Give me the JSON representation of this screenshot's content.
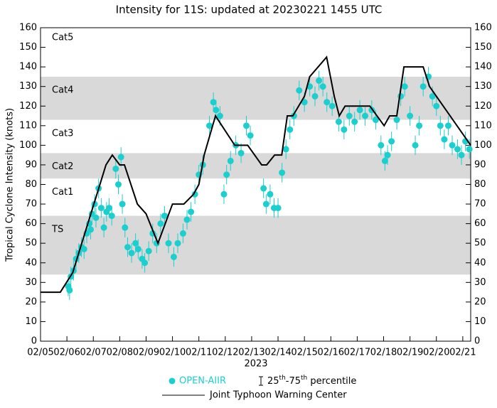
{
  "chart_data": {
    "type": "scatter",
    "title": "Intensity for 11S: updated at 20230221 1455 UTC",
    "ylabel": "Tropical Cyclone Intensity (knots)",
    "xlabel": "2023",
    "xlim": [
      5,
      21.3
    ],
    "xticks": [
      {
        "value": 5,
        "label": "02/05"
      },
      {
        "value": 6,
        "label": "02/06"
      },
      {
        "value": 7,
        "label": "02/07"
      },
      {
        "value": 8,
        "label": "02/08"
      },
      {
        "value": 9,
        "label": "02/09"
      },
      {
        "value": 10,
        "label": "02/10"
      },
      {
        "value": 11,
        "label": "02/11"
      },
      {
        "value": 12,
        "label": "02/12"
      },
      {
        "value": 13,
        "label": "02/13"
      },
      {
        "value": 14,
        "label": "02/14"
      },
      {
        "value": 15,
        "label": "02/15"
      },
      {
        "value": 16,
        "label": "02/16"
      },
      {
        "value": 17,
        "label": "02/17"
      },
      {
        "value": 18,
        "label": "02/18"
      },
      {
        "value": 19,
        "label": "02/19"
      },
      {
        "value": 20,
        "label": "02/20"
      },
      {
        "value": 21,
        "label": "02/21"
      }
    ],
    "ylim": [
      0,
      160
    ],
    "yticks": [
      0,
      10,
      20,
      30,
      40,
      50,
      60,
      70,
      80,
      90,
      100,
      110,
      120,
      130,
      140,
      150,
      160
    ],
    "y2lim": [
      0,
      160
    ],
    "y2ticks": [
      0,
      10,
      20,
      30,
      40,
      50,
      60,
      70,
      80,
      90,
      100,
      110,
      120,
      130,
      140,
      150,
      160
    ],
    "bands": [
      {
        "label": "TS",
        "range": [
          34,
          64
        ],
        "shaded": true
      },
      {
        "label": "Cat1",
        "range": [
          64,
          83
        ],
        "shaded": false
      },
      {
        "label": "Cat2",
        "range": [
          83,
          96
        ],
        "shaded": true
      },
      {
        "label": "Cat3",
        "range": [
          96,
          113
        ],
        "shaded": false
      },
      {
        "label": "Cat4",
        "range": [
          113,
          135
        ],
        "shaded": true
      },
      {
        "label": "Cat5",
        "range": [
          135,
          160
        ],
        "shaded": false
      }
    ],
    "band_color": "#d9d9d9",
    "series": [
      {
        "name": "OPEN-AIIR",
        "kind": "scatter",
        "color": "#1ccfcf",
        "error": 5,
        "x": [
          6.05,
          6.1,
          6.15,
          6.25,
          6.35,
          6.45,
          6.55,
          6.65,
          6.75,
          6.85,
          6.9,
          6.95,
          7.05,
          7.1,
          7.2,
          7.3,
          7.4,
          7.5,
          7.6,
          7.7,
          7.85,
          7.95,
          8.05,
          8.1,
          8.2,
          8.3,
          8.45,
          8.6,
          8.7,
          8.85,
          8.95,
          9.1,
          9.25,
          9.4,
          9.55,
          9.7,
          9.85,
          10.05,
          10.2,
          10.4,
          10.55,
          10.7,
          10.85,
          11.0,
          11.15,
          11.4,
          11.55,
          11.65,
          11.8,
          11.95,
          12.05,
          12.2,
          12.4,
          12.6,
          12.8,
          12.95,
          13.45,
          13.55,
          13.7,
          13.85,
          14.0,
          14.15,
          14.3,
          14.45,
          14.6,
          14.8,
          15.0,
          15.2,
          15.4,
          15.55,
          15.7,
          15.85,
          16.05,
          16.3,
          16.5,
          16.7,
          16.9,
          17.1,
          17.3,
          17.55,
          17.7,
          17.9,
          18.05,
          18.15,
          18.3,
          18.5,
          18.65,
          18.8,
          19.0,
          19.2,
          19.35,
          19.5,
          19.7,
          19.85,
          20.0,
          20.15,
          20.3,
          20.45,
          20.6,
          20.8,
          20.95,
          21.1,
          21.25
        ],
        "values": [
          28,
          26,
          33,
          36,
          42,
          45,
          48,
          47,
          55,
          60,
          57,
          65,
          70,
          63,
          78,
          68,
          58,
          66,
          68,
          64,
          88,
          80,
          94,
          70,
          58,
          48,
          45,
          50,
          47,
          42,
          40,
          46,
          55,
          50,
          60,
          64,
          50,
          43,
          50,
          55,
          62,
          66,
          75,
          85,
          90,
          110,
          122,
          118,
          115,
          75,
          85,
          92,
          100,
          96,
          110,
          105,
          78,
          70,
          75,
          68,
          68,
          86,
          98,
          108,
          115,
          128,
          122,
          130,
          125,
          133,
          130,
          122,
          120,
          112,
          108,
          115,
          112,
          118,
          115,
          118,
          113,
          100,
          92,
          95,
          102,
          113,
          125,
          130,
          115,
          100,
          110,
          130,
          135,
          125,
          120,
          110,
          103,
          110,
          100,
          98,
          95,
          102,
          98
        ]
      },
      {
        "name": "Joint Typhoon Warning Center",
        "kind": "line",
        "color": "#000000",
        "x": [
          5.0,
          5.75,
          6.22,
          7.48,
          7.72,
          8.0,
          8.18,
          8.67,
          9.0,
          9.45,
          10.0,
          10.43,
          10.8,
          11.0,
          11.2,
          11.63,
          12.36,
          12.85,
          13.38,
          13.57,
          13.87,
          14.14,
          14.35,
          14.56,
          15.0,
          15.2,
          15.84,
          16.13,
          16.32,
          16.54,
          17.48,
          17.75,
          18.02,
          18.23,
          18.5,
          18.77,
          19.5,
          19.74,
          21.3
        ],
        "values": [
          25,
          25,
          35,
          90,
          95,
          90,
          90,
          70,
          65,
          50,
          70,
          70,
          75,
          80,
          95,
          115,
          100,
          100,
          90,
          90,
          95,
          95,
          115,
          115,
          125,
          135,
          145,
          125,
          115,
          120,
          120,
          115,
          110,
          115,
          115,
          140,
          140,
          130,
          100
        ]
      }
    ],
    "error_label": [
      "25",
      "th",
      "-75",
      "th",
      " percentile"
    ]
  }
}
